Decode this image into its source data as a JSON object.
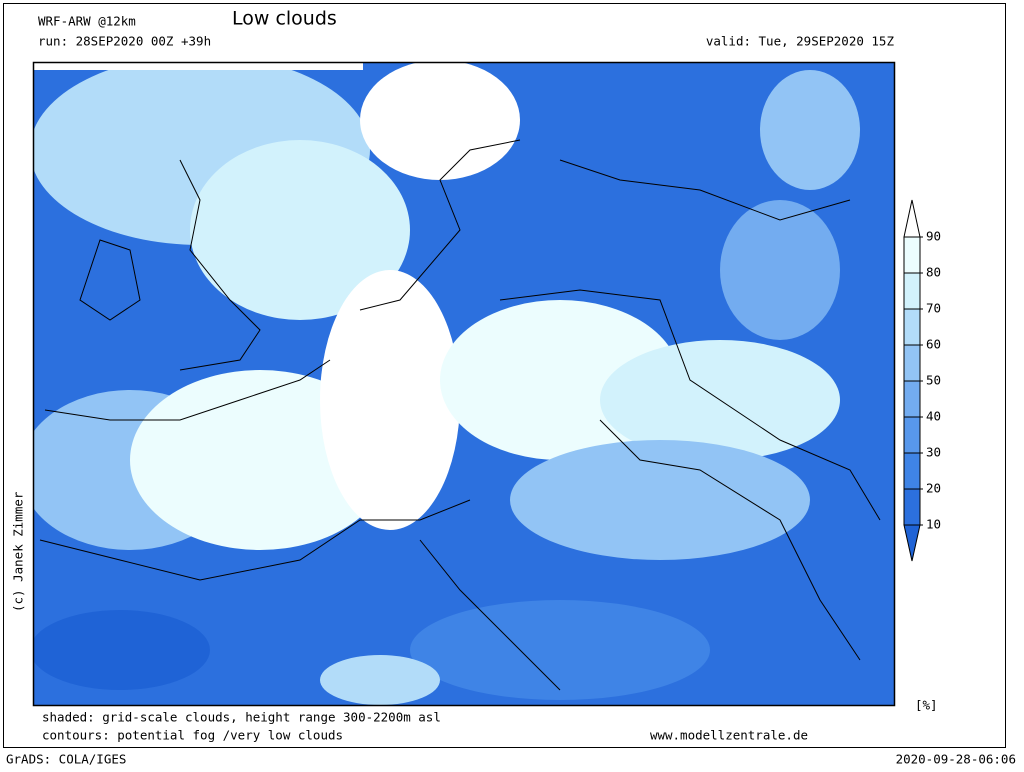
{
  "header": {
    "model": "WRF-ARW @12km",
    "title": "Low clouds",
    "run": "run: 28SEP2020 00Z +39h",
    "valid": "valid: Tue, 29SEP2020 15Z"
  },
  "copyright": "(c) Janek Zimmer",
  "legend": {
    "ticks": [
      10,
      20,
      30,
      40,
      50,
      60,
      70,
      80,
      90
    ],
    "colors": [
      "#1f63d6",
      "#2c70de",
      "#3f84e6",
      "#5898ec",
      "#73acf0",
      "#92c4f5",
      "#b2dcf9",
      "#d2f2fc",
      "#ecfdfe",
      "#ffffff"
    ],
    "unit": "[%]"
  },
  "footer": {
    "shaded": "shaded: grid-scale clouds, height range 300-2200m asl",
    "contours": "contours: potential fog /very low clouds",
    "site": "www.modellzentrale.de",
    "software": "GrADS: COLA/IGES",
    "timestamp": "2020-09-28-06:06"
  }
}
